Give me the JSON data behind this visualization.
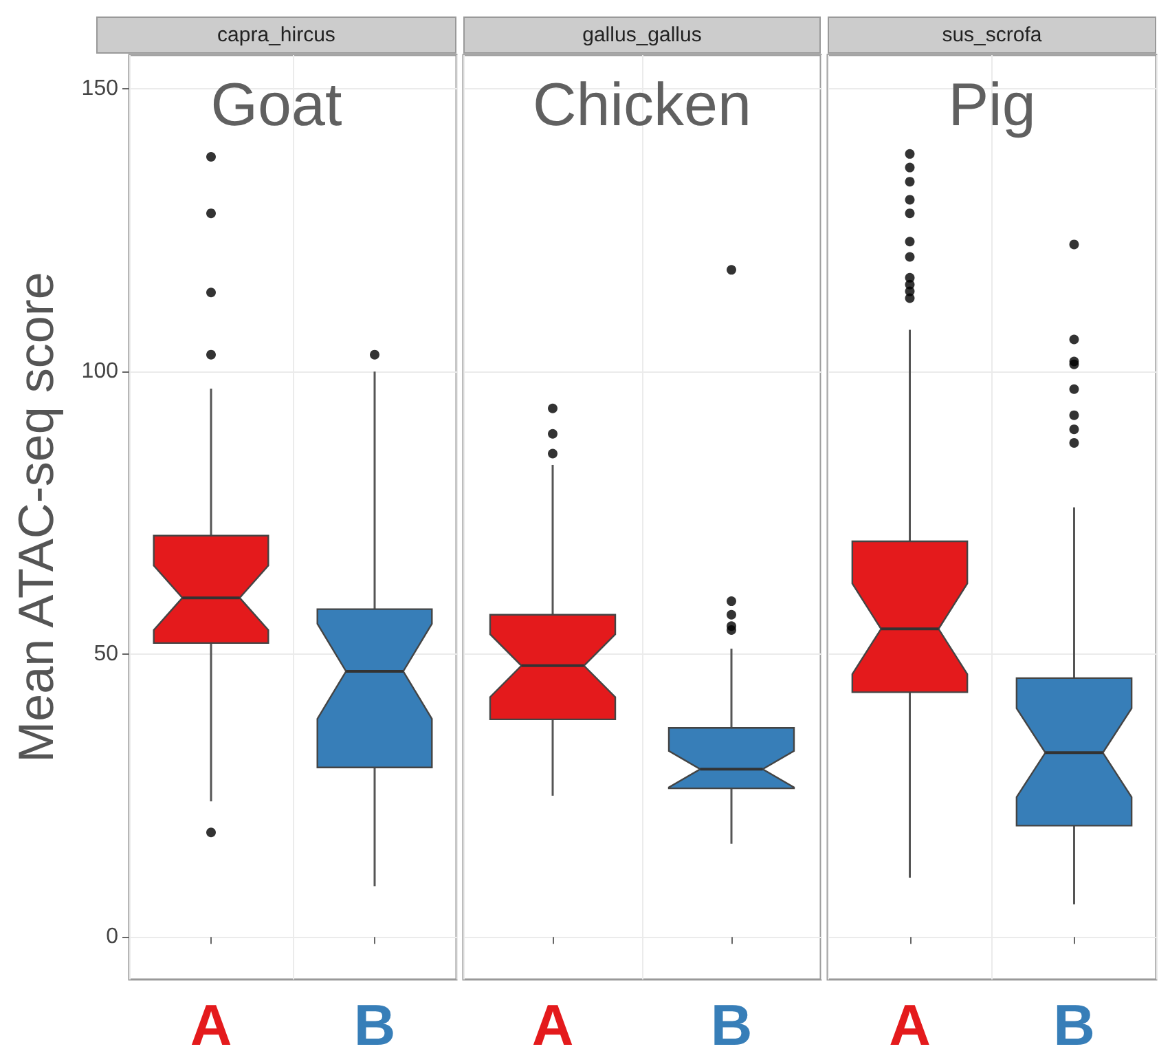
{
  "chart_data": [
    {
      "type": "box",
      "title": "capra_hircus",
      "annotations": [
        "Goat"
      ],
      "ylabel": "Mean ATAC-seq score",
      "categories": [
        "A",
        "B"
      ],
      "colors": [
        "#e41a1c",
        "#377eb8"
      ],
      "ylim": [
        -7.5,
        156
      ],
      "yticks": [
        0,
        50,
        100,
        150
      ],
      "grid": true,
      "boxes": [
        {
          "low": 24,
          "q1": 52,
          "median": 60,
          "q3": 71,
          "high": 97,
          "outliers": [
            18.5,
            103,
            114,
            128,
            138
          ]
        },
        {
          "low": 9,
          "q1": 30,
          "median": 47,
          "q3": 58,
          "high": 100,
          "outliers": [
            103
          ]
        }
      ]
    },
    {
      "type": "box",
      "title": "gallus_gallus",
      "annotations": [
        "Chicken"
      ],
      "categories": [
        "A",
        "B"
      ],
      "colors": [
        "#e41a1c",
        "#377eb8"
      ],
      "ylim": [
        -7.5,
        156
      ],
      "yticks": [
        0,
        50,
        100,
        150
      ],
      "grid": true,
      "tick_labels": "x",
      "boxes": [
        {
          "low": 25,
          "q1": 38.5,
          "median": 48,
          "q3": 57,
          "high": 83.5,
          "outliers": [
            85.5,
            89,
            93.5
          ]
        },
        {
          "low": 16.5,
          "q1": 26.3,
          "median": 29.7,
          "q3": 37,
          "high": 51,
          "outliers": [
            54.3,
            55,
            57,
            59.4,
            118
          ]
        }
      ]
    },
    {
      "type": "box",
      "title": "sus_scrofa",
      "annotations": [
        "Pig"
      ],
      "categories": [
        "A",
        "B"
      ],
      "colors": [
        "#e41a1c",
        "#377eb8"
      ],
      "ylim": [
        -7.5,
        156
      ],
      "yticks": [
        0,
        50,
        100,
        150
      ],
      "grid": true,
      "tick_labels": "x",
      "boxes": [
        {
          "low": 10.5,
          "q1": 43.3,
          "median": 54.5,
          "q3": 70,
          "high": 107.4,
          "outliers": [
            113,
            114.2,
            115.4,
            116.6,
            120.3,
            123,
            128,
            130.4,
            133.6,
            136.1,
            138.5
          ]
        },
        {
          "low": 5.8,
          "q1": 19.7,
          "median": 32.6,
          "q3": 45.8,
          "high": 76,
          "outliers": [
            87.4,
            89.8,
            92.3,
            96.9,
            101.3,
            101.8,
            105.7,
            122.5
          ]
        }
      ]
    }
  ]
}
